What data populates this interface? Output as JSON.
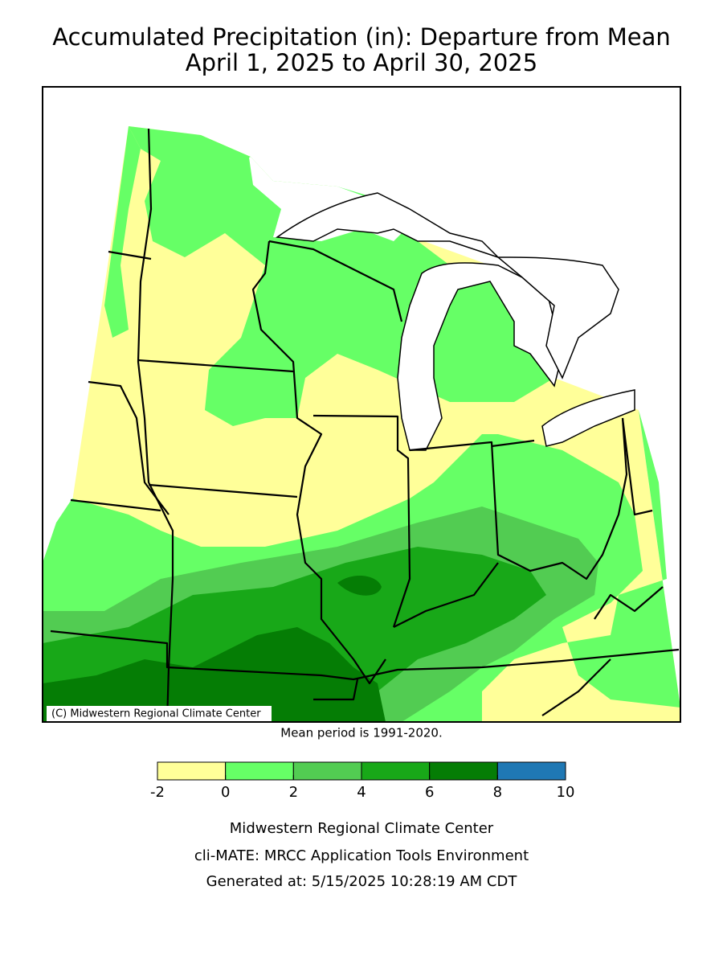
{
  "title": "Accumulated Precipitation (in): Departure from Mean",
  "subtitle": "April 1, 2025 to April 30, 2025",
  "credit": "(C) Midwestern Regional Climate Center",
  "note": "Mean period is 1991-2020.",
  "legend": {
    "bins": [
      -2,
      0,
      2,
      4,
      6,
      8,
      10
    ],
    "colors": [
      "#ffff99",
      "#66ff66",
      "#52cc52",
      "#18a818",
      "#057d05",
      "#1f78b4"
    ]
  },
  "footer": [
    "Midwestern Regional Climate Center",
    "cli-MATE: MRCC Application Tools Environment",
    "Generated at: 5/15/2025 10:28:19 AM CDT"
  ]
}
